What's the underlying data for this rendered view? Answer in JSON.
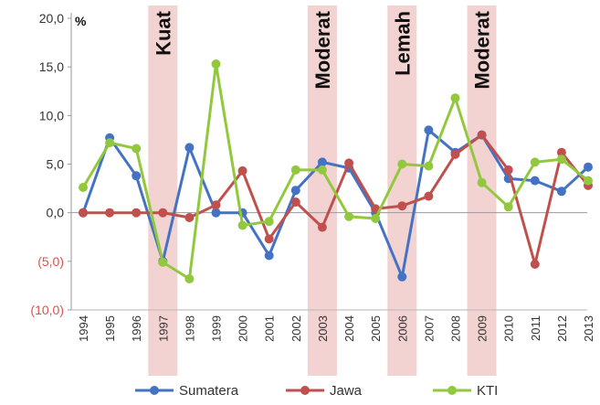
{
  "chart_data": {
    "type": "line",
    "unit_label": "%",
    "ylim": [
      -10,
      20
    ],
    "yticks": [
      {
        "value": 20,
        "label": "20,0"
      },
      {
        "value": 15,
        "label": "15,0"
      },
      {
        "value": 10,
        "label": "10,0"
      },
      {
        "value": 5,
        "label": "5,0"
      },
      {
        "value": 0,
        "label": "0,0"
      },
      {
        "value": -5,
        "label": "(5,0)"
      },
      {
        "value": -10,
        "label": "(10,0)"
      }
    ],
    "categories": [
      "1994",
      "1995",
      "1996",
      "1997",
      "1998",
      "1999",
      "2000",
      "2001",
      "2002",
      "2003",
      "2004",
      "2005",
      "2006",
      "2007",
      "2008",
      "2009",
      "2010",
      "2011",
      "2012",
      "2013"
    ],
    "highlight_bands": [
      {
        "category": "1997",
        "label": "Kuat"
      },
      {
        "category": "2003",
        "label": "Moderat"
      },
      {
        "category": "2006",
        "label": "Lemah"
      },
      {
        "category": "2009",
        "label": "Moderat"
      }
    ],
    "grid": false,
    "legend_position": "bottom",
    "series": [
      {
        "name": "Sumatera",
        "color": "#4472c4",
        "values": [
          0.0,
          7.7,
          3.8,
          -5.0,
          6.7,
          0.0,
          0.0,
          -4.4,
          2.3,
          5.2,
          4.6,
          0.0,
          -6.6,
          8.5,
          6.2,
          8.0,
          3.5,
          3.3,
          2.2,
          4.7
        ]
      },
      {
        "name": "Jawa",
        "color": "#c0504d",
        "values": [
          0.0,
          0.0,
          0.0,
          0.0,
          -0.5,
          0.8,
          4.3,
          -2.7,
          1.1,
          -1.5,
          5.1,
          0.4,
          0.7,
          1.7,
          6.0,
          8.0,
          4.4,
          -5.3,
          6.2,
          2.8
        ]
      },
      {
        "name": "KTI",
        "color": "#92c83e",
        "values": [
          2.6,
          7.2,
          6.6,
          -5.1,
          -6.8,
          15.3,
          -1.3,
          -0.9,
          4.4,
          4.4,
          -0.4,
          -0.6,
          5.0,
          4.8,
          11.8,
          3.1,
          0.6,
          5.2,
          5.5,
          3.3
        ]
      }
    ]
  }
}
